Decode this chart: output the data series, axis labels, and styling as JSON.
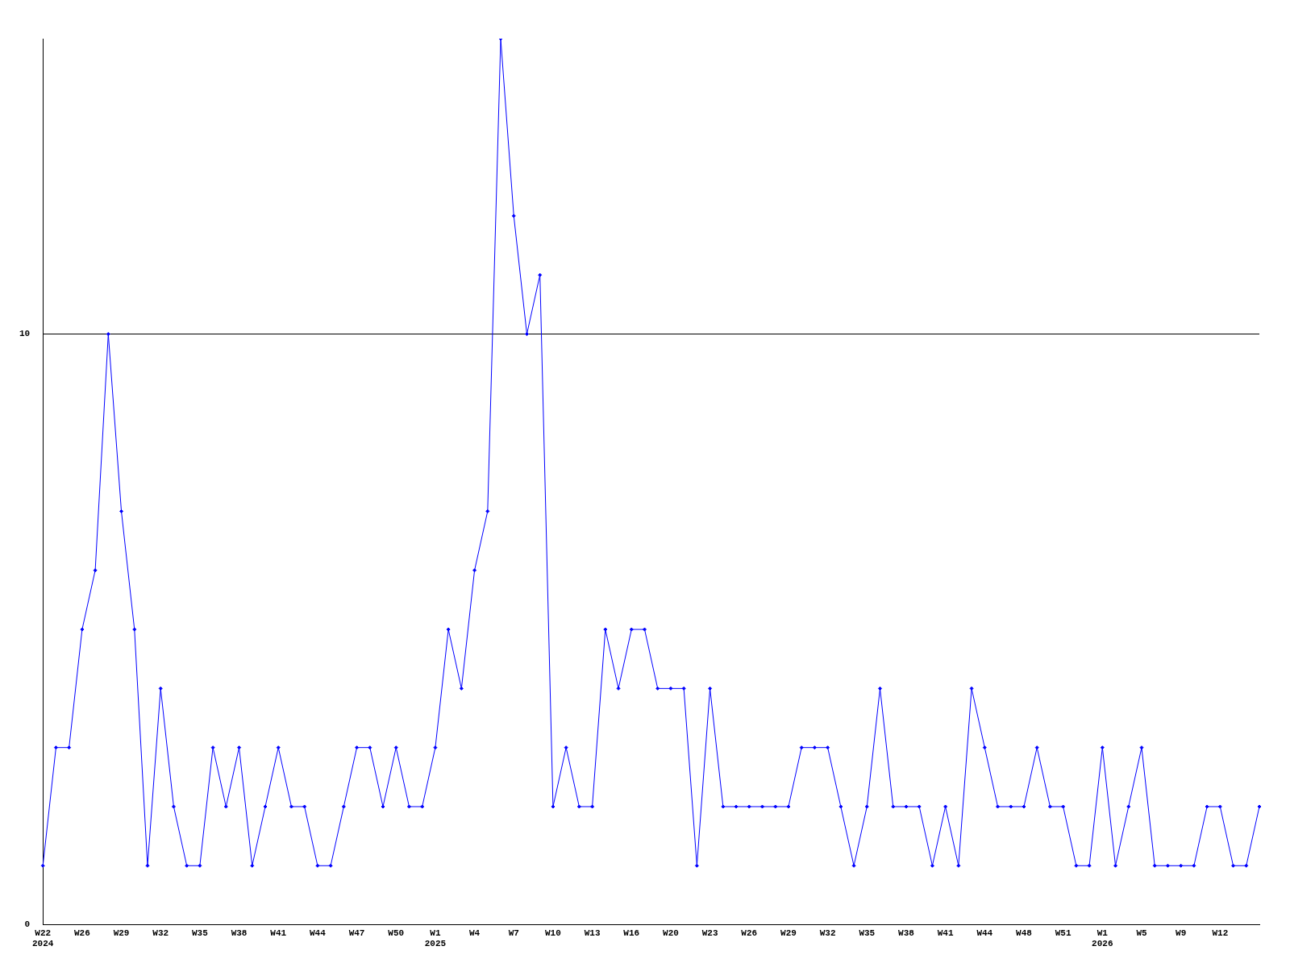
{
  "chart_data": {
    "type": "line",
    "categories": [
      "W22\n2024",
      null,
      null,
      "W26",
      null,
      null,
      "W29",
      null,
      null,
      "W32",
      null,
      null,
      "W35",
      null,
      null,
      "W38",
      null,
      null,
      "W41",
      null,
      null,
      "W44",
      null,
      null,
      "W47",
      null,
      null,
      "W50",
      null,
      null,
      "W1\n2025",
      null,
      null,
      "W4",
      null,
      null,
      "W7",
      null,
      null,
      "W10",
      null,
      null,
      "W13",
      null,
      null,
      "W16",
      null,
      null,
      "W20",
      null,
      null,
      "W23",
      null,
      null,
      "W26",
      null,
      null,
      "W29",
      null,
      null,
      "W32",
      null,
      null,
      "W35",
      null,
      null,
      "W38",
      null,
      null,
      "W41",
      null,
      null,
      "W44",
      null,
      null,
      "W48",
      null,
      null,
      "W51",
      null,
      null,
      "W1\n2026",
      null,
      null,
      "W5",
      null,
      null,
      "W9",
      null,
      null,
      "W12",
      null,
      null,
      null
    ],
    "series": [
      {
        "color": "#0000ff",
        "values": [
          1,
          3,
          3,
          5,
          6,
          10,
          7,
          5,
          1,
          4,
          2,
          1,
          1,
          3,
          2,
          3,
          1,
          2,
          3,
          2,
          2,
          1,
          1,
          2,
          3,
          3,
          2,
          3,
          2,
          2,
          3,
          5,
          4,
          6,
          7,
          15,
          12,
          10,
          11,
          2,
          3,
          2,
          2,
          5,
          4,
          5,
          5,
          4,
          4,
          4,
          1,
          4,
          2,
          2,
          2,
          2,
          2,
          2,
          3,
          3,
          3,
          2,
          1,
          2,
          4,
          2,
          2,
          2,
          1,
          2,
          1,
          4,
          3,
          2,
          2,
          2,
          3,
          2,
          2,
          1,
          1,
          3,
          1,
          2,
          3,
          1,
          1,
          1,
          1,
          2,
          2,
          1,
          1,
          2
        ]
      }
    ],
    "ylim": [
      0,
      15
    ],
    "yticks": [
      0,
      10
    ],
    "grid": "y",
    "marker": "diamond",
    "legend": false
  }
}
